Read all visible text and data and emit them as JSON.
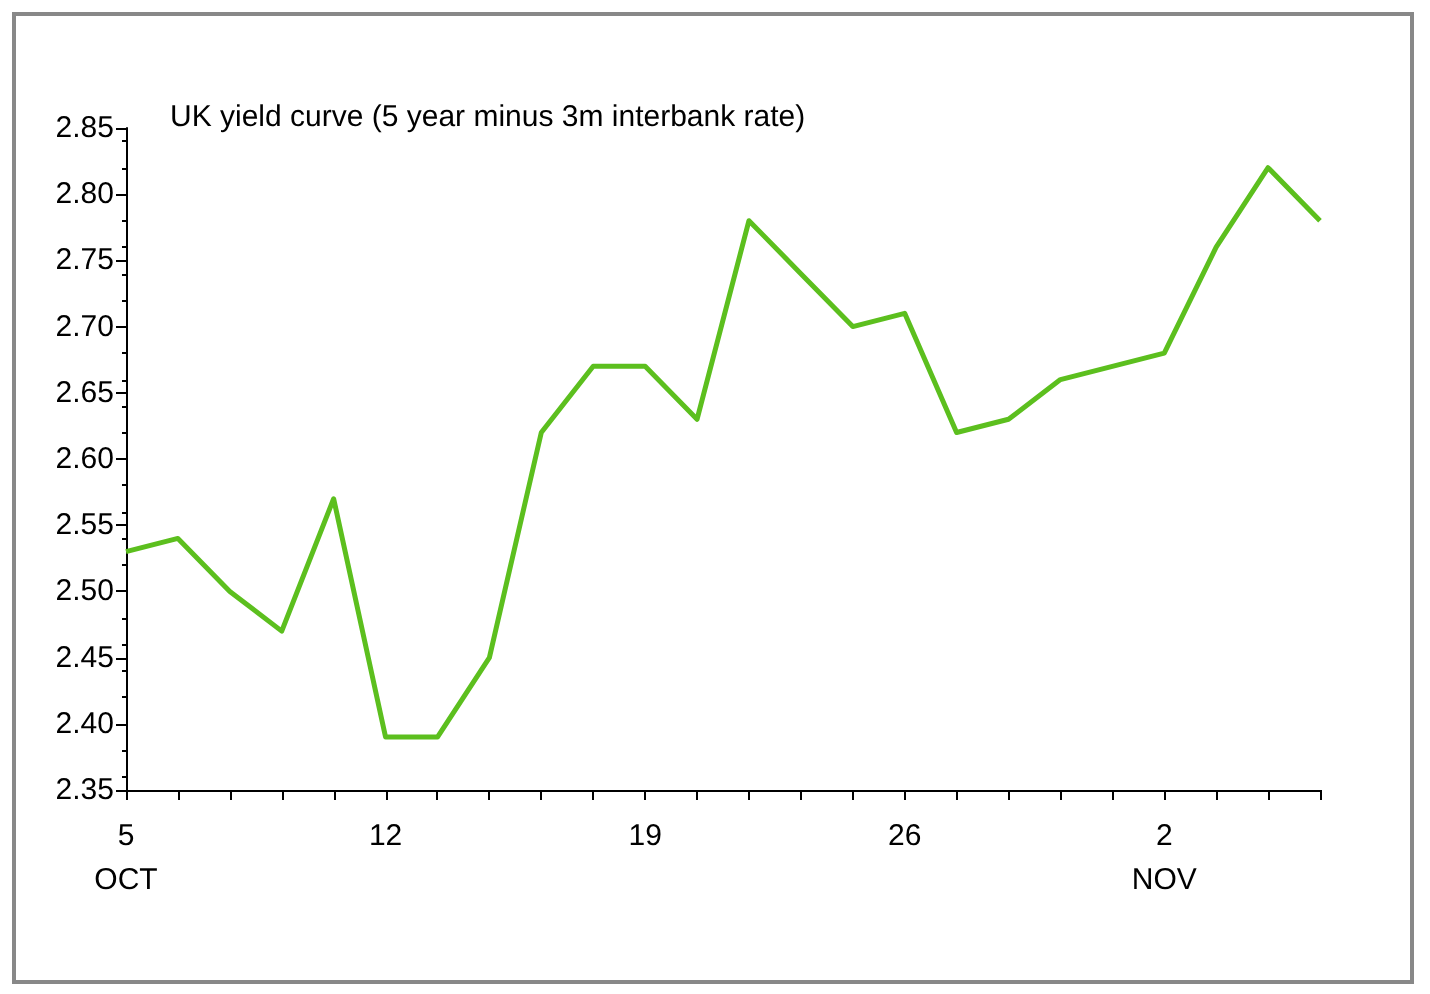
{
  "chart_data": {
    "type": "line",
    "title": "UK yield curve (5 year minus 3m interbank rate)",
    "categories": [
      "5\nOCT",
      null,
      null,
      null,
      null,
      "12",
      null,
      null,
      null,
      null,
      "19",
      null,
      null,
      null,
      null,
      "26",
      null,
      null,
      null,
      null,
      "2\nNOV",
      null,
      null,
      null
    ],
    "series": [
      {
        "color": "#5cbf1e",
        "values": [
          2.53,
          2.54,
          2.5,
          2.47,
          2.57,
          2.39,
          2.39,
          2.45,
          2.62,
          2.67,
          2.67,
          2.63,
          2.78,
          2.74,
          2.7,
          2.71,
          2.62,
          2.63,
          2.66,
          2.67,
          2.68,
          2.76,
          2.82,
          2.78
        ]
      }
    ],
    "ylim": [
      2.35,
      2.85
    ],
    "yticks": [
      {
        "value": 2.35,
        "label": "2.35"
      },
      {
        "value": 2.4,
        "label": "2.40"
      },
      {
        "value": 2.45,
        "label": "2.45"
      },
      {
        "value": 2.5,
        "label": "2.50"
      },
      {
        "value": 2.55,
        "label": "2.55"
      },
      {
        "value": 2.6,
        "label": "2.60"
      },
      {
        "value": 2.65,
        "label": "2.65"
      },
      {
        "value": 2.7,
        "label": "2.70"
      },
      {
        "value": 2.75,
        "label": "2.75"
      },
      {
        "value": 2.8,
        "label": "2.80"
      },
      {
        "value": 2.85,
        "label": "2.85"
      }
    ],
    "grid": false,
    "marker": "none",
    "line_style": "solid"
  }
}
